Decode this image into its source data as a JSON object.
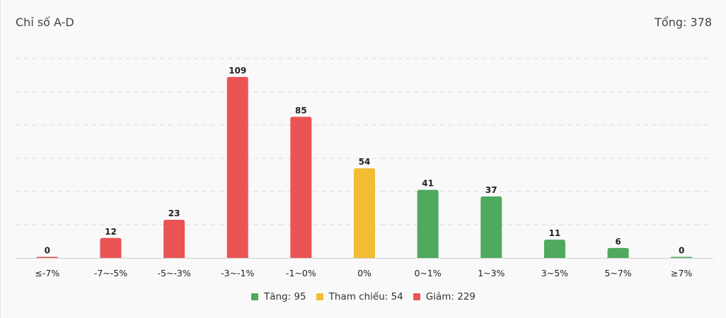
{
  "header": {
    "title": "Chỉ số A-D",
    "total_label": "Tổng: 378"
  },
  "legend": [
    {
      "label": "Tăng: 95",
      "color": "#4fa95f"
    },
    {
      "label": "Tham chiếu: 54",
      "color": "#f2bc35"
    },
    {
      "label": "Giảm: 229",
      "color": "#ea5455"
    }
  ],
  "chart_data": {
    "type": "bar",
    "title": "Chỉ số A-D",
    "categories": [
      "≤-7%",
      "-7~-5%",
      "-5~-3%",
      "-3~-1%",
      "-1~0%",
      "0%",
      "0~1%",
      "1~3%",
      "3~5%",
      "5~7%",
      "≥7%"
    ],
    "values": [
      0,
      12,
      23,
      109,
      85,
      54,
      41,
      37,
      11,
      6,
      0
    ],
    "bar_colors": [
      "#ea5455",
      "#ea5455",
      "#ea5455",
      "#ea5455",
      "#ea5455",
      "#f2bc35",
      "#4fa95f",
      "#4fa95f",
      "#4fa95f",
      "#4fa95f",
      "#4fa95f"
    ],
    "ylim": [
      0,
      120
    ],
    "grid": true,
    "legend_position": "bottom"
  }
}
